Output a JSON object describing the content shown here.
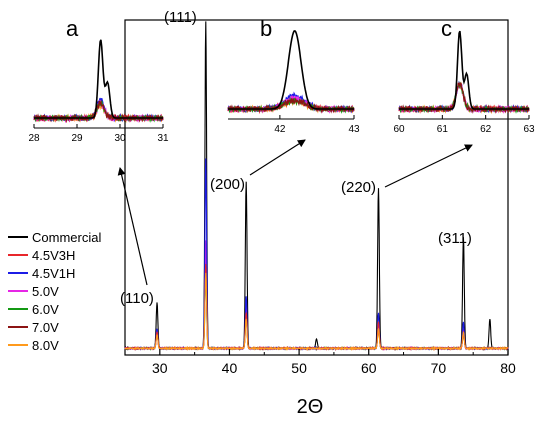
{
  "chart_data": {
    "type": "line",
    "xlabel": "2Θ",
    "ylabel": "",
    "xlim": [
      25,
      80
    ],
    "xticks": [
      "30",
      "40",
      "50",
      "60",
      "70",
      "80"
    ],
    "legend_position": "left",
    "series": [
      {
        "name": "Commercial",
        "color": "#000000",
        "peaks": [
          [
            29.6,
            0.14
          ],
          [
            36.6,
            1.0
          ],
          [
            42.4,
            0.51
          ],
          [
            52.5,
            0.03
          ],
          [
            61.4,
            0.49
          ],
          [
            73.6,
            0.34
          ],
          [
            77.4,
            0.09
          ]
        ]
      },
      {
        "name": "4.5V3H",
        "color": "#e8262b",
        "peaks": [
          [
            29.6,
            0.05
          ],
          [
            36.6,
            0.26
          ],
          [
            42.4,
            0.11
          ],
          [
            61.4,
            0.08
          ],
          [
            73.6,
            0.05
          ]
        ]
      },
      {
        "name": "4.5V1H",
        "color": "#1c1ce6",
        "peaks": [
          [
            29.6,
            0.06
          ],
          [
            36.6,
            0.58
          ],
          [
            42.4,
            0.16
          ],
          [
            61.4,
            0.11
          ],
          [
            73.6,
            0.08
          ]
        ]
      },
      {
        "name": "5.0V",
        "color": "#e626e6",
        "peaks": [
          [
            29.6,
            0.05
          ],
          [
            36.6,
            0.33
          ],
          [
            42.4,
            0.13
          ],
          [
            61.4,
            0.08
          ],
          [
            73.6,
            0.06
          ]
        ]
      },
      {
        "name": "6.0V",
        "color": "#149914",
        "peaks": [
          [
            29.6,
            0.05
          ],
          [
            36.6,
            0.22
          ],
          [
            42.4,
            0.1
          ],
          [
            61.4,
            0.07
          ],
          [
            73.6,
            0.05
          ]
        ]
      },
      {
        "name": "7.0V",
        "color": "#8c1414",
        "peaks": [
          [
            29.6,
            0.05
          ],
          [
            36.6,
            0.32
          ],
          [
            42.4,
            0.1
          ],
          [
            61.4,
            0.07
          ],
          [
            73.6,
            0.05
          ]
        ]
      },
      {
        "name": "8.0V",
        "color": "#ff9a1c",
        "peaks": [
          [
            29.6,
            0.04
          ],
          [
            36.6,
            0.23
          ],
          [
            42.4,
            0.09
          ],
          [
            61.4,
            0.06
          ],
          [
            73.6,
            0.05
          ]
        ]
      }
    ],
    "peak_labels": [
      "(110)",
      "(111)",
      "(200)",
      "(220)",
      "(311)"
    ],
    "insets": [
      {
        "letter": "a",
        "xlim": [
          28,
          31
        ],
        "xticks": [
          "28",
          "29",
          "30",
          "31"
        ],
        "center": 29.55
      },
      {
        "letter": "b",
        "xlim": [
          41.3,
          43
        ],
        "xticks": [
          "42",
          "43"
        ],
        "center": 42.2
      },
      {
        "letter": "c",
        "xlim": [
          60,
          63
        ],
        "xticks": [
          "60",
          "61",
          "62",
          "63"
        ],
        "center": 61.4
      }
    ]
  }
}
